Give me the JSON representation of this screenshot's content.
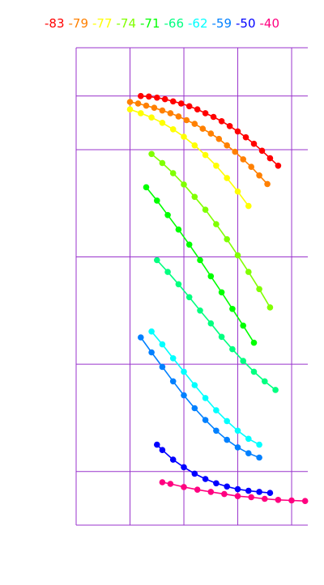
{
  "chart_data": {
    "type": "line",
    "title": "",
    "xlabel": "",
    "ylabel": "",
    "xlim": [
      0,
      4.3
    ],
    "ylim": [
      0,
      8.9
    ],
    "grid": true,
    "grid_color": "#9933cc",
    "x_gridlines": [
      1,
      2,
      3,
      4
    ],
    "y_gridlines": [
      1,
      3,
      5,
      7,
      8
    ],
    "legend_position": "top",
    "series": [
      {
        "name": "-83",
        "color": "#ff0000",
        "x": [
          1.2,
          1.35,
          1.5,
          1.65,
          1.8,
          1.95,
          2.1,
          2.25,
          2.4,
          2.55,
          2.7,
          2.85,
          3.0,
          3.15,
          3.3,
          3.45,
          3.6,
          3.75
        ],
        "y": [
          8.0,
          7.99,
          7.97,
          7.94,
          7.9,
          7.86,
          7.81,
          7.75,
          7.68,
          7.61,
          7.53,
          7.44,
          7.34,
          7.23,
          7.11,
          6.98,
          6.84,
          6.7
        ]
      },
      {
        "name": "-79",
        "color": "#ff8000",
        "x": [
          1.0,
          1.15,
          1.3,
          1.45,
          1.6,
          1.75,
          1.9,
          2.05,
          2.2,
          2.35,
          2.5,
          2.65,
          2.8,
          2.95,
          3.1,
          3.25,
          3.4,
          3.55
        ],
        "y": [
          7.89,
          7.86,
          7.82,
          7.78,
          7.73,
          7.68,
          7.62,
          7.55,
          7.48,
          7.39,
          7.3,
          7.2,
          7.08,
          6.96,
          6.82,
          6.68,
          6.52,
          6.36
        ]
      },
      {
        "name": "-77",
        "color": "#ffff00",
        "x": [
          1.0,
          1.2,
          1.4,
          1.6,
          1.8,
          2.0,
          2.2,
          2.4,
          2.6,
          2.8,
          3.0,
          3.2
        ],
        "y": [
          7.75,
          7.68,
          7.6,
          7.5,
          7.38,
          7.24,
          7.08,
          6.9,
          6.7,
          6.47,
          6.22,
          5.95
        ]
      },
      {
        "name": "-74",
        "color": "#80ff00",
        "x": [
          1.4,
          1.6,
          1.8,
          2.0,
          2.2,
          2.4,
          2.6,
          2.8,
          3.0,
          3.2,
          3.4,
          3.6
        ],
        "y": [
          6.92,
          6.75,
          6.56,
          6.35,
          6.12,
          5.88,
          5.61,
          5.33,
          5.03,
          4.72,
          4.4,
          4.06
        ]
      },
      {
        "name": "-71",
        "color": "#00ff00",
        "x": [
          1.3,
          1.5,
          1.7,
          1.9,
          2.1,
          2.3,
          2.5,
          2.7,
          2.9,
          3.1,
          3.3
        ],
        "y": [
          6.3,
          6.05,
          5.78,
          5.51,
          5.23,
          4.94,
          4.64,
          4.34,
          4.03,
          3.72,
          3.4
        ]
      },
      {
        "name": "-66",
        "color": "#00ff80",
        "x": [
          1.5,
          1.7,
          1.9,
          2.1,
          2.3,
          2.5,
          2.7,
          2.9,
          3.1,
          3.3,
          3.5,
          3.7
        ],
        "y": [
          4.94,
          4.72,
          4.49,
          4.25,
          4.0,
          3.76,
          3.51,
          3.28,
          3.06,
          2.86,
          2.68,
          2.52
        ]
      },
      {
        "name": "-62",
        "color": "#00ffff",
        "x": [
          1.4,
          1.6,
          1.8,
          2.0,
          2.2,
          2.4,
          2.6,
          2.8,
          3.0,
          3.2,
          3.4
        ],
        "y": [
          3.61,
          3.37,
          3.11,
          2.86,
          2.61,
          2.37,
          2.14,
          1.94,
          1.76,
          1.61,
          1.5
        ]
      },
      {
        "name": "-59",
        "color": "#0080ff",
        "x": [
          1.2,
          1.4,
          1.6,
          1.8,
          2.0,
          2.2,
          2.4,
          2.6,
          2.8,
          3.0,
          3.2,
          3.4
        ],
        "y": [
          3.5,
          3.22,
          2.95,
          2.68,
          2.42,
          2.18,
          1.96,
          1.76,
          1.59,
          1.45,
          1.34,
          1.26
        ]
      },
      {
        "name": "-50",
        "color": "#0000ff",
        "x": [
          1.5,
          1.6,
          1.8,
          2.0,
          2.2,
          2.4,
          2.6,
          2.8,
          3.0,
          3.2,
          3.4,
          3.6
        ],
        "y": [
          1.5,
          1.4,
          1.22,
          1.08,
          0.96,
          0.86,
          0.78,
          0.72,
          0.67,
          0.64,
          0.62,
          0.6
        ]
      },
      {
        "name": "-40",
        "color": "#ff0080",
        "x": [
          1.6,
          1.75,
          2.0,
          2.25,
          2.5,
          2.75,
          3.0,
          3.25,
          3.5,
          3.75,
          4.0,
          4.25
        ],
        "y": [
          0.8,
          0.77,
          0.71,
          0.66,
          0.62,
          0.58,
          0.54,
          0.52,
          0.49,
          0.47,
          0.46,
          0.45
        ]
      }
    ]
  }
}
